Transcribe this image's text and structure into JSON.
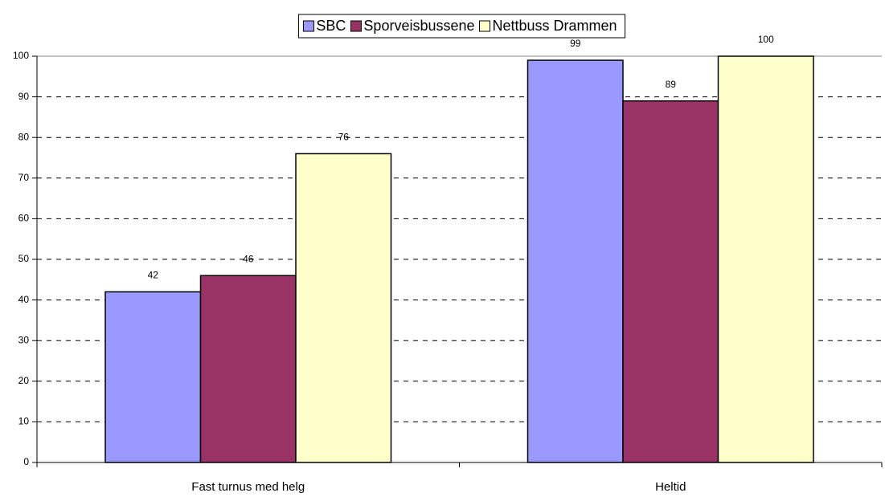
{
  "chart_data": {
    "type": "bar",
    "categories": [
      "Fast turnus med helg",
      "Heltid"
    ],
    "series": [
      {
        "name": "SBC",
        "color": "#9999ff",
        "values": [
          42,
          99
        ]
      },
      {
        "name": "Sporveisbussene",
        "color": "#993366",
        "values": [
          46,
          89
        ]
      },
      {
        "name": "Nettbuss Drammen",
        "color": "#ffffcc",
        "values": [
          76,
          100
        ]
      }
    ],
    "ylim": [
      0,
      100
    ],
    "yticks": [
      0,
      10,
      20,
      30,
      40,
      50,
      60,
      70,
      80,
      90,
      100
    ],
    "grid": true,
    "legend": "top"
  }
}
